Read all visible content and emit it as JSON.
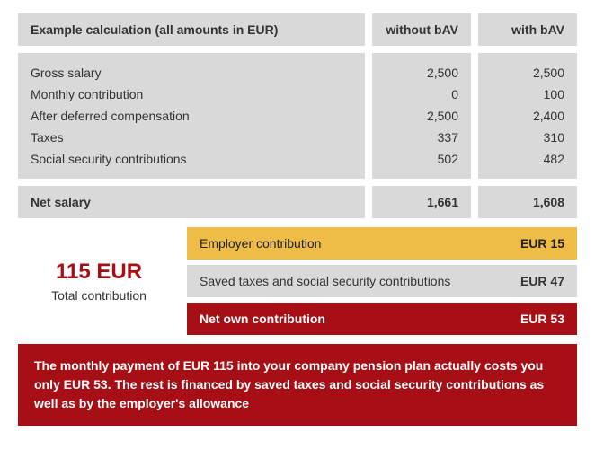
{
  "colors": {
    "grey": "#d9d9d9",
    "yellow": "#efbd47",
    "red": "#a50f15",
    "text": "#333333",
    "white": "#ffffff"
  },
  "header": {
    "title": "Example calculation (all amounts in EUR)",
    "col1": "without bAV",
    "col2": "with bAV"
  },
  "rows": [
    {
      "label": "Gross salary",
      "without": "2,500",
      "with": "2,500"
    },
    {
      "label": "Monthly contribution",
      "without": "0",
      "with": "100"
    },
    {
      "label": "After deferred compensation",
      "without": "2,500",
      "with": "2,400"
    },
    {
      "label": "Taxes",
      "without": "337",
      "with": "310"
    },
    {
      "label": "Social security contributions",
      "without": "502",
      "with": "482"
    }
  ],
  "net": {
    "label": "Net salary",
    "without": "1,661",
    "with": "1,608"
  },
  "total": {
    "value": "115 EUR",
    "label": "Total contribution"
  },
  "contributions": [
    {
      "label": "Employer contribution",
      "value": "EUR 15",
      "style": "yellow"
    },
    {
      "label": "Saved taxes and social security contributions",
      "value": "EUR 47",
      "style": "grey"
    },
    {
      "label": "Net own contribution",
      "value": "EUR 53",
      "style": "red"
    }
  ],
  "footer": "The monthly payment of EUR 115 into your company pension plan actually costs you only EUR 53. The rest is financed by saved taxes and social security contributions as well as by the employer's allowance"
}
